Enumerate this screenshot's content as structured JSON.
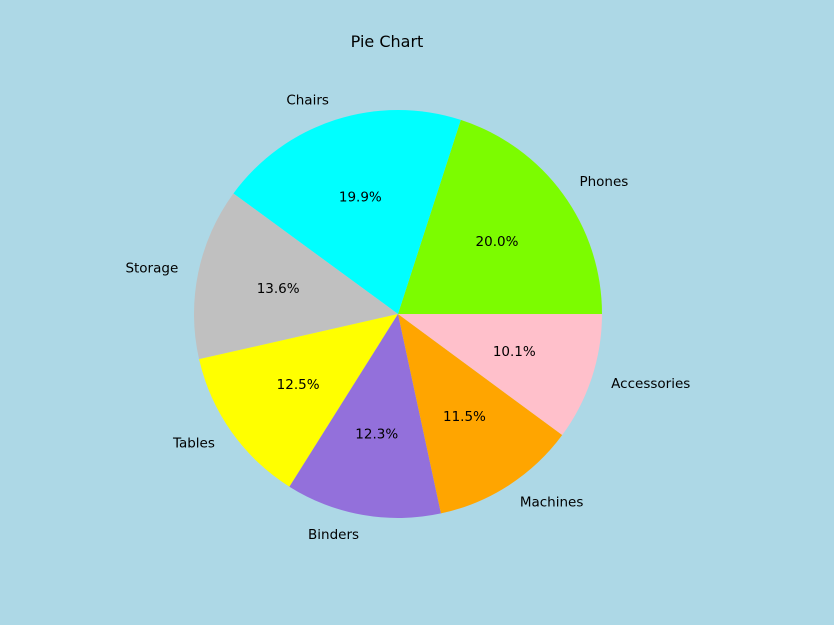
{
  "figure": {
    "background": "#add8e6"
  },
  "chart_data": {
    "type": "pie",
    "title": "Pie Chart",
    "start_angle_deg": 0,
    "direction": "counterclockwise",
    "slices": [
      {
        "label": "Phones",
        "value": 20.0,
        "percent_label": "20.0%",
        "color": "#7cfc00"
      },
      {
        "label": "Chairs",
        "value": 19.9,
        "percent_label": "19.9%",
        "color": "#00ffff"
      },
      {
        "label": "Storage",
        "value": 13.6,
        "percent_label": "13.6%",
        "color": "#c0c0c0"
      },
      {
        "label": "Tables",
        "value": 12.5,
        "percent_label": "12.5%",
        "color": "#ffff00"
      },
      {
        "label": "Binders",
        "value": 12.3,
        "percent_label": "12.3%",
        "color": "#9370db"
      },
      {
        "label": "Machines",
        "value": 11.5,
        "percent_label": "11.5%",
        "color": "#ffa500"
      },
      {
        "label": "Accessories",
        "value": 10.1,
        "percent_label": "10.1%",
        "color": "#ffc0cb"
      }
    ]
  }
}
